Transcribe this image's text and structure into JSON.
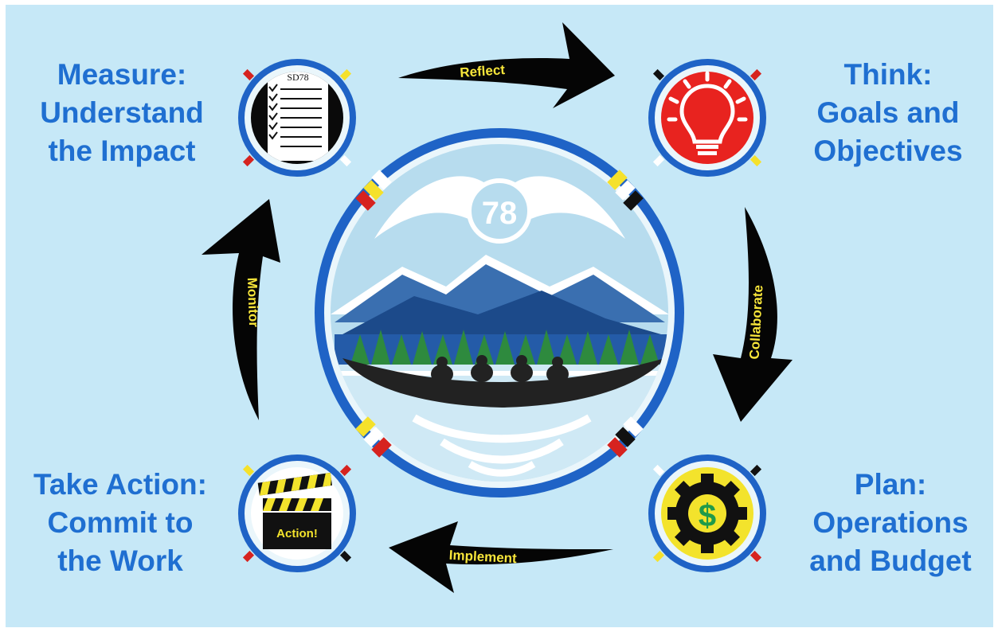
{
  "steps": {
    "measure": {
      "lines": [
        "Measure:",
        "Understand",
        "the Impact"
      ]
    },
    "think": {
      "lines": [
        "Think:",
        "Goals and",
        "Objectives"
      ]
    },
    "plan": {
      "lines": [
        "Plan:",
        "Operations",
        "and Budget"
      ]
    },
    "action": {
      "lines": [
        "Take Action:",
        "Commit to",
        "the Work"
      ]
    }
  },
  "arrows": {
    "reflect": "Reflect",
    "collaborate": "Collaborate",
    "implement": "Implement",
    "monitor": "Monitor"
  },
  "icons": {
    "checklist_header": "SD78",
    "clapboard_text": "Action!",
    "gear_symbol": "$",
    "logo_number": "78"
  },
  "icon_names": [
    "checklist-icon",
    "lightbulb-icon",
    "gear-dollar-icon",
    "clapperboard-icon",
    "sd78-canoe-logo"
  ],
  "colors": {
    "background": "#c6e8f7",
    "label": "#1f6fd1",
    "ring": "#1f63c6",
    "arrow": "#050505",
    "arrow_text": "#f7e53a",
    "bulb_red": "#e8231f",
    "gear_yellow": "#f3e32c"
  }
}
